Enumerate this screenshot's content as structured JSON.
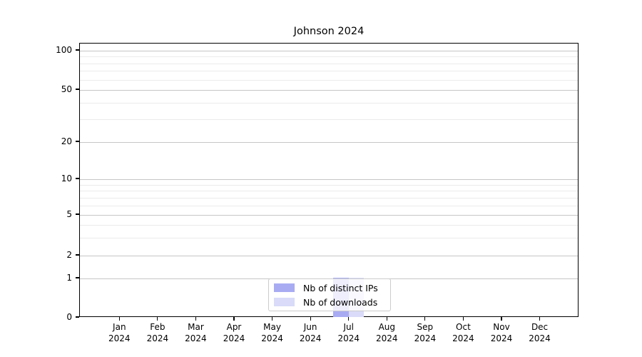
{
  "title": "Johnson 2024",
  "axes": {
    "y_ticks": [
      {
        "value": 100,
        "label": "100"
      },
      {
        "value": 50,
        "label": "50"
      },
      {
        "value": 20,
        "label": "20"
      },
      {
        "value": 10,
        "label": "10"
      },
      {
        "value": 5,
        "label": "5"
      },
      {
        "value": 2,
        "label": "2"
      },
      {
        "value": 1,
        "label": "1"
      },
      {
        "value": 0,
        "label": "0"
      }
    ],
    "x_ticks": [
      {
        "line1": "Jan",
        "line2": "2024"
      },
      {
        "line1": "Feb",
        "line2": "2024"
      },
      {
        "line1": "Mar",
        "line2": "2024"
      },
      {
        "line1": "Apr",
        "line2": "2024"
      },
      {
        "line1": "May",
        "line2": "2024"
      },
      {
        "line1": "Jun",
        "line2": "2024"
      },
      {
        "line1": "Jul",
        "line2": "2024"
      },
      {
        "line1": "Aug",
        "line2": "2024"
      },
      {
        "line1": "Sep",
        "line2": "2024"
      },
      {
        "line1": "Oct",
        "line2": "2024"
      },
      {
        "line1": "Nov",
        "line2": "2024"
      },
      {
        "line1": "Dec",
        "line2": "2024"
      }
    ]
  },
  "legend": {
    "items": [
      {
        "label": "Nb of distinct IPs",
        "color": "#a8abf2"
      },
      {
        "label": "Nb of downloads",
        "color": "#d9dbf8"
      }
    ]
  },
  "chart_data": {
    "type": "bar",
    "categories": [
      "Jan 2024",
      "Feb 2024",
      "Mar 2024",
      "Apr 2024",
      "May 2024",
      "Jun 2024",
      "Jul 2024",
      "Aug 2024",
      "Sep 2024",
      "Oct 2024",
      "Nov 2024",
      "Dec 2024"
    ],
    "series": [
      {
        "name": "Nb of distinct IPs",
        "color": "#a8abf2",
        "values": [
          0,
          0,
          0,
          0,
          0,
          0,
          1,
          0,
          0,
          0,
          0,
          0
        ]
      },
      {
        "name": "Nb of downloads",
        "color": "#d9dbf8",
        "values": [
          0,
          0,
          0,
          0,
          0,
          0,
          1,
          0,
          0,
          0,
          0,
          0
        ]
      }
    ],
    "title": "Johnson 2024",
    "xlabel": "",
    "ylabel": "",
    "yscale": "symlog",
    "y_tick_values": [
      0,
      1,
      2,
      5,
      10,
      20,
      50,
      100
    ],
    "y_minor_gridlines": [
      3,
      4,
      6,
      7,
      8,
      9,
      30,
      40,
      60,
      70,
      80,
      90
    ],
    "ylim": [
      0,
      115
    ],
    "grid": true,
    "legend_position": "lower center"
  }
}
